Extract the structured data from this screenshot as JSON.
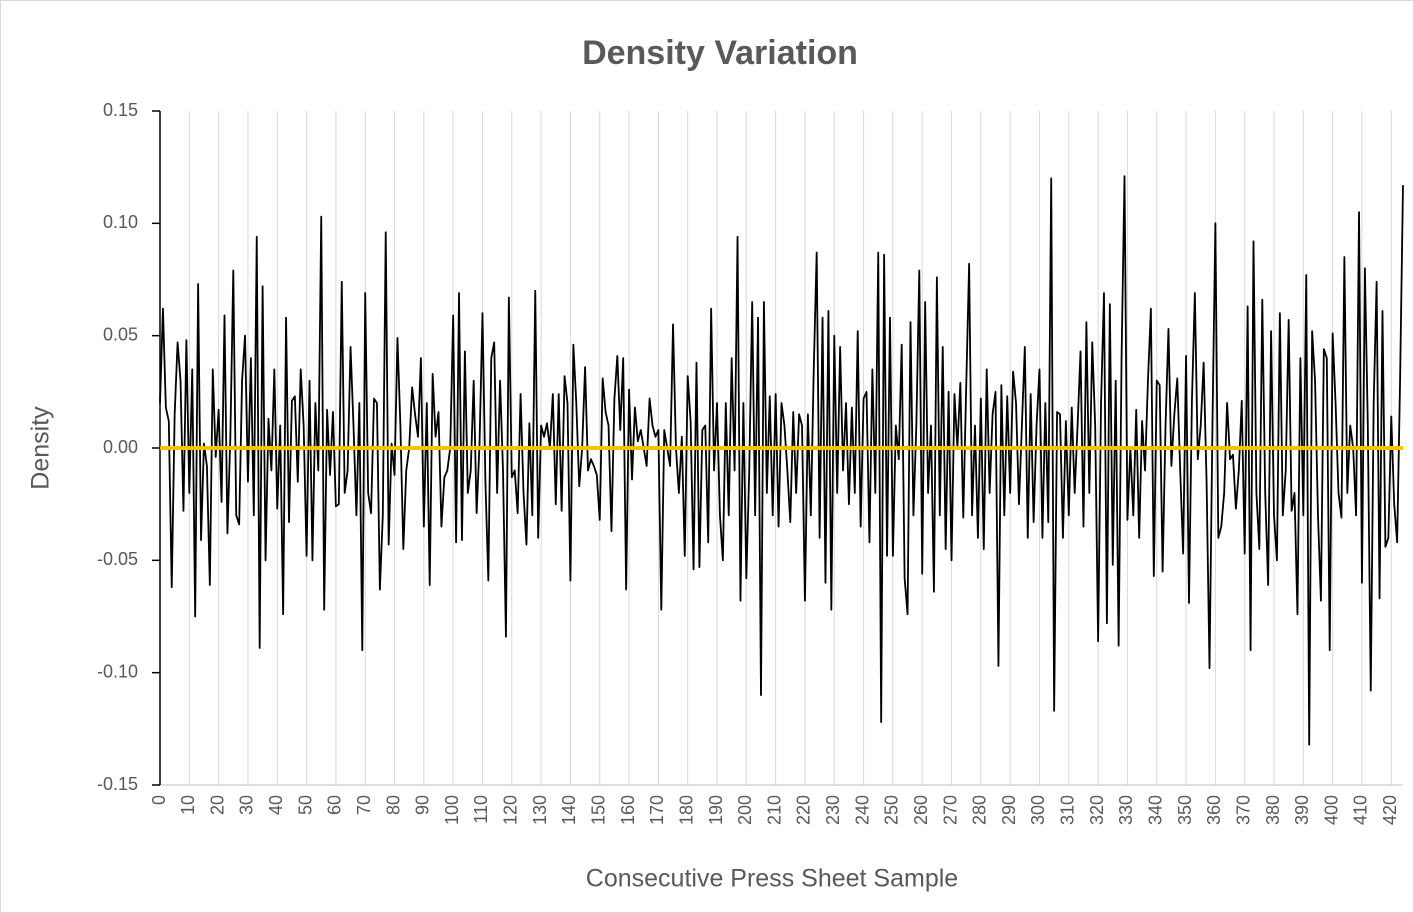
{
  "chart_data": {
    "type": "line",
    "title": "Density Variation",
    "x_label": "Consecutive Press Sheet Sample",
    "y_label": "Density",
    "xlim": [
      0,
      424
    ],
    "xticks": [
      0,
      10,
      20,
      30,
      40,
      50,
      60,
      70,
      80,
      90,
      100,
      110,
      120,
      130,
      140,
      150,
      160,
      170,
      180,
      190,
      200,
      210,
      220,
      230,
      240,
      250,
      260,
      270,
      280,
      290,
      300,
      310,
      320,
      330,
      340,
      350,
      360,
      370,
      380,
      390,
      400,
      410,
      420
    ],
    "ylim": [
      -0.15,
      0.15
    ],
    "yticks": [
      0.15,
      {
        "value": 0.1,
        "label": "0.10"
      },
      0.05,
      {
        "value": 0,
        "label": "0.00"
      },
      -0.05,
      {
        "value": -0.1,
        "label": "-0.10"
      },
      -0.15
    ],
    "grid": true,
    "zero_line": {
      "value": 0,
      "color": "#ffc000"
    },
    "x": [
      0,
      1,
      2,
      3,
      4,
      5,
      6,
      7,
      8,
      9,
      10,
      11,
      12,
      13,
      14,
      15,
      16,
      17,
      18,
      19,
      20,
      21,
      22,
      23,
      24,
      25,
      26,
      27,
      28,
      29,
      30,
      31,
      32,
      33,
      34,
      35,
      36,
      37,
      38,
      39,
      40,
      41,
      42,
      43,
      44,
      45,
      46,
      47,
      48,
      49,
      50,
      51,
      52,
      53,
      54,
      55,
      56,
      57,
      58,
      59,
      60,
      61,
      62,
      63,
      64,
      65,
      66,
      67,
      68,
      69,
      70,
      71,
      72,
      73,
      74,
      75,
      76,
      77,
      78,
      79,
      80,
      81,
      82,
      83,
      84,
      85,
      86,
      87,
      88,
      89,
      90,
      91,
      92,
      93,
      94,
      95,
      96,
      97,
      98,
      99,
      100,
      101,
      102,
      103,
      104,
      105,
      106,
      107,
      108,
      109,
      110,
      111,
      112,
      113,
      114,
      115,
      116,
      117,
      118,
      119,
      120,
      121,
      122,
      123,
      124,
      125,
      126,
      127,
      128,
      129,
      130,
      131,
      132,
      133,
      134,
      135,
      136,
      137,
      138,
      139,
      140,
      141,
      142,
      143,
      144,
      145,
      146,
      147,
      148,
      149,
      150,
      151,
      152,
      153,
      154,
      155,
      156,
      157,
      158,
      159,
      160,
      161,
      162,
      163,
      164,
      165,
      166,
      167,
      168,
      169,
      170,
      171,
      172,
      173,
      174,
      175,
      176,
      177,
      178,
      179,
      180,
      181,
      182,
      183,
      184,
      185,
      186,
      187,
      188,
      189,
      190,
      191,
      192,
      193,
      194,
      195,
      196,
      197,
      198,
      199,
      200,
      201,
      202,
      203,
      204,
      205,
      206,
      207,
      208,
      209,
      210,
      211,
      212,
      213,
      214,
      215,
      216,
      217,
      218,
      219,
      220,
      221,
      222,
      223,
      224,
      225,
      226,
      227,
      228,
      229,
      230,
      231,
      232,
      233,
      234,
      235,
      236,
      237,
      238,
      239,
      240,
      241,
      242,
      243,
      244,
      245,
      246,
      247,
      248,
      249,
      250,
      251,
      252,
      253,
      254,
      255,
      256,
      257,
      258,
      259,
      260,
      261,
      262,
      263,
      264,
      265,
      266,
      267,
      268,
      269,
      270,
      271,
      272,
      273,
      274,
      275,
      276,
      277,
      278,
      279,
      280,
      281,
      282,
      283,
      284,
      285,
      286,
      287,
      288,
      289,
      290,
      291,
      292,
      293,
      294,
      295,
      296,
      297,
      298,
      299,
      300,
      301,
      302,
      303,
      304,
      305,
      306,
      307,
      308,
      309,
      310,
      311,
      312,
      313,
      314,
      315,
      316,
      317,
      318,
      319,
      320,
      321,
      322,
      323,
      324,
      325,
      326,
      327,
      328,
      329,
      330,
      331,
      332,
      333,
      334,
      335,
      336,
      337,
      338,
      339,
      340,
      341,
      342,
      343,
      344,
      345,
      346,
      347,
      348,
      349,
      350,
      351,
      352,
      353,
      354,
      355,
      356,
      357,
      358,
      359,
      360,
      361,
      362,
      363,
      364,
      365,
      366,
      367,
      368,
      369,
      370,
      371,
      372,
      373,
      374,
      375,
      376,
      377,
      378,
      379,
      380,
      381,
      382,
      383,
      384,
      385,
      386,
      387,
      388,
      389,
      390,
      391,
      392,
      393,
      394,
      395,
      396,
      397,
      398,
      399,
      400,
      401,
      402,
      403,
      404,
      405,
      406,
      407,
      408,
      409,
      410,
      411,
      412,
      413,
      414,
      415,
      416,
      417,
      418,
      419,
      420,
      421,
      422,
      423,
      424
    ],
    "series": [
      {
        "color": "#000000",
        "values": [
          0.02,
          0.062,
          0.018,
          0.012,
          -0.062,
          0.015,
          0.047,
          0.03,
          -0.028,
          0.048,
          -0.02,
          0.035,
          -0.075,
          0.073,
          -0.041,
          0.002,
          -0.008,
          -0.061,
          0.035,
          -0.004,
          0.017,
          -0.024,
          0.059,
          -0.038,
          0.005,
          0.079,
          -0.03,
          -0.034,
          0.03,
          0.05,
          -0.015,
          0.04,
          -0.03,
          0.094,
          -0.089,
          0.072,
          -0.05,
          0.013,
          -0.01,
          0.035,
          -0.027,
          0.01,
          -0.074,
          0.058,
          -0.033,
          0.021,
          0.023,
          -0.015,
          0.035,
          0.01,
          -0.048,
          0.03,
          -0.05,
          0.02,
          -0.01,
          0.103,
          -0.072,
          0.017,
          -0.012,
          0.016,
          -0.026,
          -0.025,
          0.074,
          -0.02,
          -0.01,
          0.045,
          0.01,
          -0.03,
          0.02,
          -0.09,
          0.069,
          -0.02,
          -0.029,
          0.022,
          0.02,
          -0.063,
          -0.03,
          0.096,
          -0.043,
          0.002,
          -0.012,
          0.049,
          0.01,
          -0.045,
          -0.01,
          0.0,
          0.027,
          0.015,
          0.005,
          0.04,
          -0.035,
          0.02,
          -0.061,
          0.033,
          0.005,
          0.016,
          -0.035,
          -0.013,
          -0.01,
          0.0,
          0.059,
          -0.042,
          0.069,
          -0.041,
          0.043,
          -0.02,
          -0.01,
          0.03,
          -0.029,
          0.002,
          0.06,
          -0.015,
          -0.059,
          0.04,
          0.047,
          -0.02,
          0.03,
          -0.01,
          -0.084,
          0.067,
          -0.013,
          -0.01,
          -0.029,
          0.024,
          -0.02,
          -0.043,
          0.011,
          -0.03,
          0.07,
          -0.04,
          0.01,
          0.005,
          0.011,
          0.0,
          0.024,
          -0.025,
          0.024,
          -0.028,
          0.032,
          0.02,
          -0.059,
          0.046,
          0.02,
          -0.017,
          0.0,
          0.036,
          -0.01,
          -0.005,
          -0.008,
          -0.012,
          -0.032,
          0.031,
          0.016,
          0.01,
          -0.037,
          0.022,
          0.041,
          0.008,
          0.04,
          -0.063,
          0.026,
          -0.014,
          0.018,
          0.003,
          0.008,
          0.0,
          -0.008,
          0.022,
          0.01,
          0.005,
          0.008,
          -0.072,
          0.008,
          0.0,
          -0.008,
          0.055,
          0.0,
          -0.02,
          0.005,
          -0.048,
          0.032,
          0.012,
          -0.054,
          0.038,
          -0.053,
          0.008,
          0.01,
          -0.042,
          0.062,
          -0.01,
          0.02,
          -0.03,
          -0.05,
          0.02,
          -0.03,
          0.04,
          -0.01,
          0.094,
          -0.068,
          0.02,
          -0.058,
          -0.01,
          0.065,
          -0.03,
          0.058,
          -0.11,
          0.065,
          -0.02,
          0.023,
          -0.03,
          0.024,
          -0.035,
          0.02,
          0.01,
          -0.01,
          -0.033,
          0.016,
          -0.02,
          0.015,
          0.01,
          -0.068,
          0.015,
          -0.03,
          0.035,
          0.087,
          -0.04,
          0.058,
          -0.06,
          0.061,
          -0.072,
          0.05,
          -0.02,
          0.045,
          -0.01,
          0.02,
          -0.025,
          0.018,
          -0.02,
          0.052,
          -0.035,
          0.022,
          0.025,
          -0.042,
          0.035,
          -0.02,
          0.087,
          -0.122,
          0.086,
          -0.048,
          0.058,
          -0.048,
          0.01,
          -0.005,
          0.046,
          -0.058,
          -0.074,
          0.056,
          -0.03,
          0.01,
          0.079,
          -0.056,
          0.065,
          -0.02,
          0.01,
          -0.064,
          0.076,
          -0.03,
          0.045,
          -0.045,
          0.025,
          -0.05,
          0.024,
          0.0,
          0.029,
          -0.031,
          0.027,
          0.082,
          -0.03,
          0.01,
          -0.04,
          0.022,
          -0.045,
          0.035,
          -0.02,
          0.015,
          0.025,
          -0.097,
          0.028,
          -0.03,
          0.023,
          -0.02,
          0.034,
          0.02,
          -0.025,
          0.01,
          0.045,
          -0.04,
          0.024,
          -0.033,
          0.01,
          0.035,
          -0.04,
          0.02,
          -0.033,
          0.12,
          -0.117,
          0.016,
          0.015,
          -0.04,
          0.012,
          -0.03,
          0.018,
          -0.02,
          0.01,
          0.043,
          -0.035,
          0.056,
          -0.02,
          0.047,
          0.01,
          -0.086,
          0.02,
          0.069,
          -0.078,
          0.064,
          -0.052,
          0.03,
          -0.088,
          0.04,
          0.121,
          -0.032,
          0.0,
          -0.03,
          0.017,
          -0.04,
          0.012,
          -0.01,
          0.03,
          0.062,
          -0.057,
          0.03,
          0.028,
          -0.055,
          0.01,
          0.053,
          -0.008,
          0.015,
          0.031,
          -0.01,
          -0.047,
          0.041,
          -0.069,
          0.021,
          0.069,
          -0.005,
          0.01,
          0.038,
          -0.015,
          -0.098,
          0.01,
          0.1,
          -0.04,
          -0.035,
          -0.02,
          0.02,
          -0.005,
          -0.003,
          -0.027,
          -0.01,
          0.021,
          -0.047,
          0.063,
          -0.09,
          0.092,
          -0.02,
          -0.045,
          0.066,
          -0.02,
          -0.061,
          0.052,
          -0.03,
          -0.05,
          0.06,
          -0.03,
          -0.01,
          0.057,
          -0.028,
          -0.02,
          -0.074,
          0.04,
          -0.03,
          0.077,
          -0.132,
          0.052,
          0.03,
          -0.03,
          -0.068,
          0.044,
          0.04,
          -0.09,
          0.051,
          0.02,
          -0.02,
          -0.031,
          0.085,
          -0.02,
          0.01,
          0.0,
          -0.03,
          0.105,
          -0.06,
          0.08,
          0.01,
          -0.108,
          0.02,
          0.074,
          -0.067,
          0.061,
          -0.044,
          -0.04,
          0.014,
          -0.025,
          -0.042,
          0.03,
          0.117
        ]
      }
    ]
  }
}
